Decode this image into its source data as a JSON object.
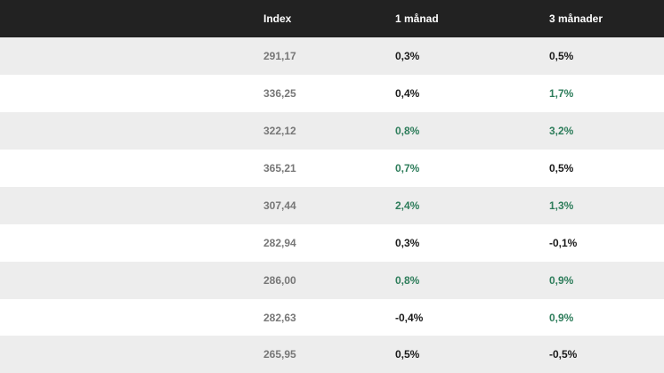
{
  "header": {
    "index_label": "Index",
    "month1_label": "1 månad",
    "month3_label": "3 månader"
  },
  "colors": {
    "header_bg": "#222222",
    "row_shaded": "#ededed",
    "positive": "#2e7d5b",
    "neutral": "#1a1a1a",
    "index": "#777777"
  },
  "rows": [
    {
      "index": "291,17",
      "m1": "0,3%",
      "m1_pos": false,
      "m3": "0,5%",
      "m3_pos": false
    },
    {
      "index": "336,25",
      "m1": "0,4%",
      "m1_pos": false,
      "m3": "1,7%",
      "m3_pos": true
    },
    {
      "index": "322,12",
      "m1": "0,8%",
      "m1_pos": true,
      "m3": "3,2%",
      "m3_pos": true
    },
    {
      "index": "365,21",
      "m1": "0,7%",
      "m1_pos": true,
      "m3": "0,5%",
      "m3_pos": false
    },
    {
      "index": "307,44",
      "m1": "2,4%",
      "m1_pos": true,
      "m3": "1,3%",
      "m3_pos": true
    },
    {
      "index": "282,94",
      "m1": "0,3%",
      "m1_pos": false,
      "m3": "-0,1%",
      "m3_pos": false
    },
    {
      "index": "286,00",
      "m1": "0,8%",
      "m1_pos": true,
      "m3": "0,9%",
      "m3_pos": true
    },
    {
      "index": "282,63",
      "m1": "-0,4%",
      "m1_pos": false,
      "m3": "0,9%",
      "m3_pos": true
    },
    {
      "index": "265,95",
      "m1": "0,5%",
      "m1_pos": false,
      "m3": "-0,5%",
      "m3_pos": false
    }
  ]
}
